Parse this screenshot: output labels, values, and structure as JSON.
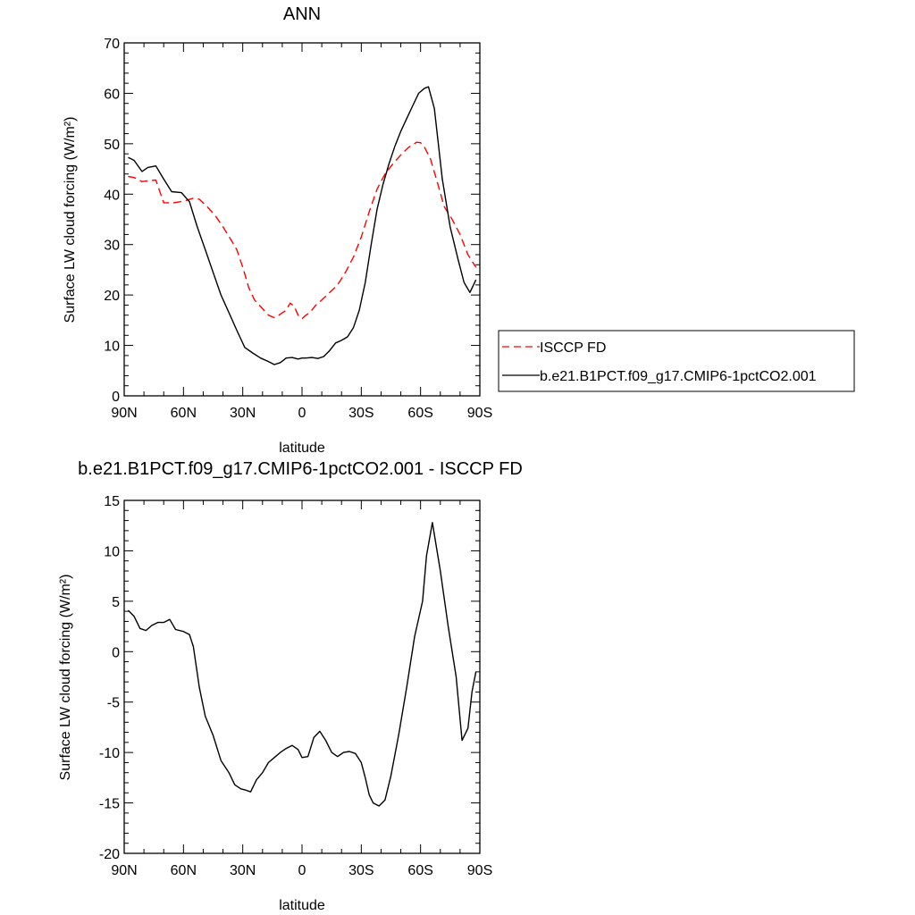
{
  "chart_data": [
    {
      "type": "line",
      "title": "ANN",
      "xlabel": "latitude",
      "ylabel": "Surface LW cloud forcing (W/m²)",
      "xlim": [
        90,
        -90
      ],
      "ylim": [
        0,
        70
      ],
      "x_ticks": [
        90,
        60,
        30,
        0,
        -30,
        -60,
        -90
      ],
      "x_tick_labels": [
        "90N",
        "60N",
        "30N",
        "0",
        "30S",
        "60S",
        "90S"
      ],
      "y_ticks": [
        0,
        10,
        20,
        30,
        40,
        50,
        60,
        70
      ],
      "y_tick_labels": [
        "0",
        "10",
        "20",
        "30",
        "40",
        "50",
        "60",
        "70"
      ],
      "legend": "right",
      "grid": false,
      "series": [
        {
          "name": "ISCCP FD",
          "color": "#ff0000",
          "style": "dashed",
          "x": [
            88,
            85,
            81,
            77,
            74,
            70,
            65,
            60,
            55,
            52,
            48,
            44,
            40,
            36,
            33,
            30,
            27,
            24,
            20,
            17,
            14,
            11,
            8,
            6,
            4,
            2,
            0,
            -2,
            -4,
            -7,
            -10,
            -14,
            -18,
            -22,
            -26,
            -30,
            -34,
            -38,
            -42,
            -46,
            -50,
            -54,
            -58,
            -60,
            -62,
            -65,
            -68,
            -72,
            -76,
            -80,
            -84,
            -88
          ],
          "y": [
            43.5,
            43.3,
            42.5,
            42.7,
            42.8,
            38.3,
            38.3,
            38.6,
            39.2,
            39.0,
            37.5,
            35.8,
            33.5,
            31.0,
            29.0,
            25.5,
            21.5,
            19.0,
            17.3,
            16.0,
            15.5,
            16.2,
            17.0,
            18.4,
            17.8,
            16.0,
            15.3,
            16.0,
            16.5,
            18.0,
            19.0,
            20.5,
            22.0,
            24.5,
            27.5,
            31.5,
            36.5,
            41.0,
            44.0,
            46.0,
            47.8,
            49.3,
            50.3,
            50.2,
            49.3,
            47.0,
            43.0,
            37.5,
            35.0,
            32.0,
            28.0,
            25.5
          ]
        },
        {
          "name": "b.e21.B1PCT.f09_g17.CMIP6-1pctCO2.001",
          "color": "#000000",
          "style": "solid",
          "x": [
            88,
            85,
            81,
            78,
            74,
            70,
            66,
            61,
            57,
            53,
            49,
            45,
            41,
            37,
            33,
            29,
            25,
            21,
            17,
            14,
            11,
            8,
            5,
            2,
            0,
            -2,
            -5,
            -8,
            -11,
            -14,
            -17,
            -20,
            -23,
            -26,
            -29,
            -32,
            -35,
            -38,
            -41,
            -44,
            -47,
            -50,
            -53,
            -56,
            -59,
            -62,
            -64,
            -67,
            -71,
            -75,
            -79,
            -82,
            -85,
            -88
          ],
          "y": [
            47.3,
            46.7,
            44.5,
            45.3,
            45.6,
            43.0,
            40.5,
            40.3,
            38.5,
            33.5,
            29.0,
            24.5,
            20.0,
            16.5,
            13.0,
            9.6,
            8.5,
            7.5,
            6.8,
            6.2,
            6.6,
            7.5,
            7.6,
            7.3,
            7.5,
            7.5,
            7.6,
            7.4,
            7.8,
            9.0,
            10.5,
            11.0,
            11.7,
            13.5,
            17.0,
            22.5,
            30.0,
            37.0,
            42.0,
            46.0,
            49.5,
            52.5,
            55.0,
            57.5,
            60.0,
            61.0,
            61.3,
            57.0,
            43.0,
            33.5,
            27.0,
            22.5,
            20.5,
            23.0
          ]
        }
      ]
    },
    {
      "type": "line",
      "title": "b.e21.B1PCT.f09_g17.CMIP6-1pctCO2.001 - ISCCP FD",
      "xlabel": "latitude",
      "ylabel": "Surface LW cloud forcing (W/m²)",
      "xlim": [
        90,
        -90
      ],
      "ylim": [
        -20,
        15
      ],
      "x_ticks": [
        90,
        60,
        30,
        0,
        -30,
        -60,
        -90
      ],
      "x_tick_labels": [
        "90N",
        "60N",
        "30N",
        "0",
        "30S",
        "60S",
        "90S"
      ],
      "y_ticks": [
        -20,
        -15,
        -10,
        -5,
        0,
        5,
        10,
        15
      ],
      "y_tick_labels": [
        "-20",
        "-15",
        "-10",
        "-5",
        "0",
        "5",
        "10",
        "15"
      ],
      "grid": false,
      "series": [
        {
          "color": "#000000",
          "style": "solid",
          "x": [
            88,
            85,
            82,
            79,
            76,
            73,
            70,
            67,
            64,
            60,
            57,
            55,
            52,
            49,
            45,
            41,
            37,
            34,
            31,
            29,
            26,
            23,
            20,
            17,
            14,
            11,
            8,
            5,
            2,
            0,
            -3,
            -6,
            -9,
            -12,
            -15,
            -18,
            -21,
            -24,
            -27,
            -30,
            -32,
            -34,
            -36,
            -39,
            -42,
            -45,
            -49,
            -53,
            -57,
            -61,
            -63,
            -66,
            -70,
            -74,
            -78,
            -81,
            -84,
            -86,
            -88
          ],
          "y": [
            4.1,
            3.5,
            2.3,
            2.1,
            2.6,
            2.9,
            2.9,
            3.2,
            2.2,
            2.0,
            1.7,
            0.5,
            -3.5,
            -6.4,
            -8.3,
            -10.8,
            -12.0,
            -13.2,
            -13.6,
            -13.7,
            -13.9,
            -12.7,
            -12.0,
            -11.0,
            -10.5,
            -10.0,
            -9.6,
            -9.3,
            -9.7,
            -10.5,
            -10.4,
            -8.5,
            -7.9,
            -8.8,
            -10.0,
            -10.4,
            -10.0,
            -9.9,
            -10.1,
            -11.0,
            -12.5,
            -14.2,
            -15.0,
            -15.3,
            -14.7,
            -12.3,
            -8.2,
            -3.5,
            1.5,
            5.0,
            9.5,
            12.8,
            8.0,
            2.5,
            -2.5,
            -8.8,
            -7.6,
            -4.0,
            -2.0
          ]
        }
      ]
    }
  ]
}
